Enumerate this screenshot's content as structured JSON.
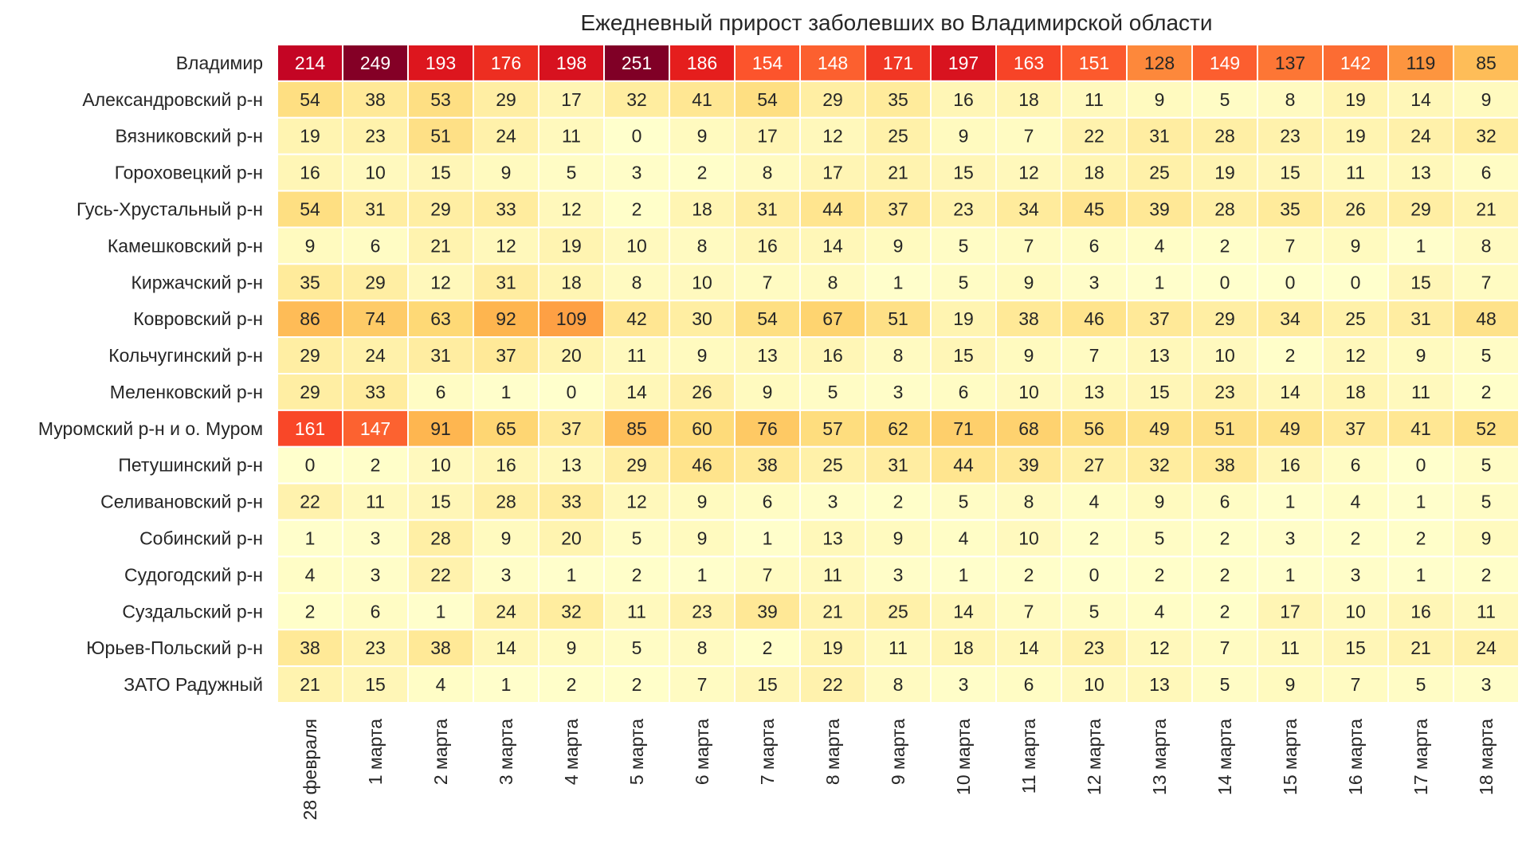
{
  "chart_data": {
    "type": "heatmap",
    "title": "Ежедневный прирост заболевших во Владимирской области",
    "x": [
      "28 февраля",
      "1 марта",
      "2 марта",
      "3 марта",
      "4 марта",
      "5 марта",
      "6 марта",
      "7 марта",
      "8 марта",
      "9 марта",
      "10 марта",
      "11 марта",
      "12 марта",
      "13 марта",
      "14 марта",
      "15 марта",
      "16 марта",
      "17 марта",
      "18 марта"
    ],
    "y": [
      "Владимир",
      "Александровский р-н",
      "Вязниковский р-н",
      "Гороховецкий р-н",
      "Гусь-Хрустальный р-н",
      "Камешковский р-н",
      "Киржачский р-н",
      "Ковровский р-н",
      "Кольчугинский р-н",
      "Меленковский р-н",
      "Муромский р-н и о. Муром",
      "Петушинский р-н",
      "Селивановский р-н",
      "Собинский р-н",
      "Судогодский р-н",
      "Суздальский р-н",
      "Юрьев-Польский р-н",
      "ЗАТО Радужный"
    ],
    "values": [
      [
        214,
        249,
        193,
        176,
        198,
        251,
        186,
        154,
        148,
        171,
        197,
        163,
        151,
        128,
        149,
        137,
        142,
        119,
        85
      ],
      [
        54,
        38,
        53,
        29,
        17,
        32,
        41,
        54,
        29,
        35,
        16,
        18,
        11,
        9,
        5,
        8,
        19,
        14,
        9
      ],
      [
        19,
        23,
        51,
        24,
        11,
        0,
        9,
        17,
        12,
        25,
        9,
        7,
        22,
        31,
        28,
        23,
        19,
        24,
        32
      ],
      [
        16,
        10,
        15,
        9,
        5,
        3,
        2,
        8,
        17,
        21,
        15,
        12,
        18,
        25,
        19,
        15,
        11,
        13,
        6
      ],
      [
        54,
        31,
        29,
        33,
        12,
        2,
        18,
        31,
        44,
        37,
        23,
        34,
        45,
        39,
        28,
        35,
        26,
        29,
        21
      ],
      [
        9,
        6,
        21,
        12,
        19,
        10,
        8,
        16,
        14,
        9,
        5,
        7,
        6,
        4,
        2,
        7,
        9,
        1,
        8
      ],
      [
        35,
        29,
        12,
        31,
        18,
        8,
        10,
        7,
        8,
        1,
        5,
        9,
        3,
        1,
        0,
        0,
        0,
        15,
        7
      ],
      [
        86,
        74,
        63,
        92,
        109,
        42,
        30,
        54,
        67,
        51,
        19,
        38,
        46,
        37,
        29,
        34,
        25,
        31,
        48
      ],
      [
        29,
        24,
        31,
        37,
        20,
        11,
        9,
        13,
        16,
        8,
        15,
        9,
        7,
        13,
        10,
        2,
        12,
        9,
        5
      ],
      [
        29,
        33,
        6,
        1,
        0,
        14,
        26,
        9,
        5,
        3,
        6,
        10,
        13,
        15,
        23,
        14,
        18,
        11,
        2
      ],
      [
        161,
        147,
        91,
        65,
        37,
        85,
        60,
        76,
        57,
        62,
        71,
        68,
        56,
        49,
        51,
        49,
        37,
        41,
        52
      ],
      [
        0,
        2,
        10,
        16,
        13,
        29,
        46,
        38,
        25,
        31,
        44,
        39,
        27,
        32,
        38,
        16,
        6,
        0,
        5
      ],
      [
        22,
        11,
        15,
        28,
        33,
        12,
        9,
        6,
        3,
        2,
        5,
        8,
        4,
        9,
        6,
        1,
        4,
        1,
        5
      ],
      [
        1,
        3,
        28,
        9,
        20,
        5,
        9,
        1,
        13,
        9,
        4,
        10,
        2,
        5,
        2,
        3,
        2,
        2,
        9
      ],
      [
        4,
        3,
        22,
        3,
        1,
        2,
        1,
        7,
        11,
        3,
        1,
        2,
        0,
        2,
        2,
        1,
        3,
        1,
        2
      ],
      [
        2,
        6,
        1,
        24,
        32,
        11,
        23,
        39,
        21,
        25,
        14,
        7,
        5,
        4,
        2,
        17,
        10,
        16,
        11
      ],
      [
        38,
        23,
        38,
        14,
        9,
        5,
        8,
        2,
        19,
        11,
        18,
        14,
        23,
        12,
        7,
        11,
        15,
        21,
        24
      ],
      [
        21,
        15,
        4,
        1,
        2,
        2,
        7,
        15,
        22,
        8,
        3,
        6,
        10,
        13,
        5,
        9,
        7,
        5,
        3
      ]
    ],
    "vmin": 0,
    "vmax": 251,
    "colormap": "YlOrRd",
    "grid": false,
    "legend": "none"
  },
  "colors": {
    "background": "#ffffff",
    "text_dark": "#262626",
    "text_light": "#ffffff",
    "cell_border": "#ffffff"
  }
}
